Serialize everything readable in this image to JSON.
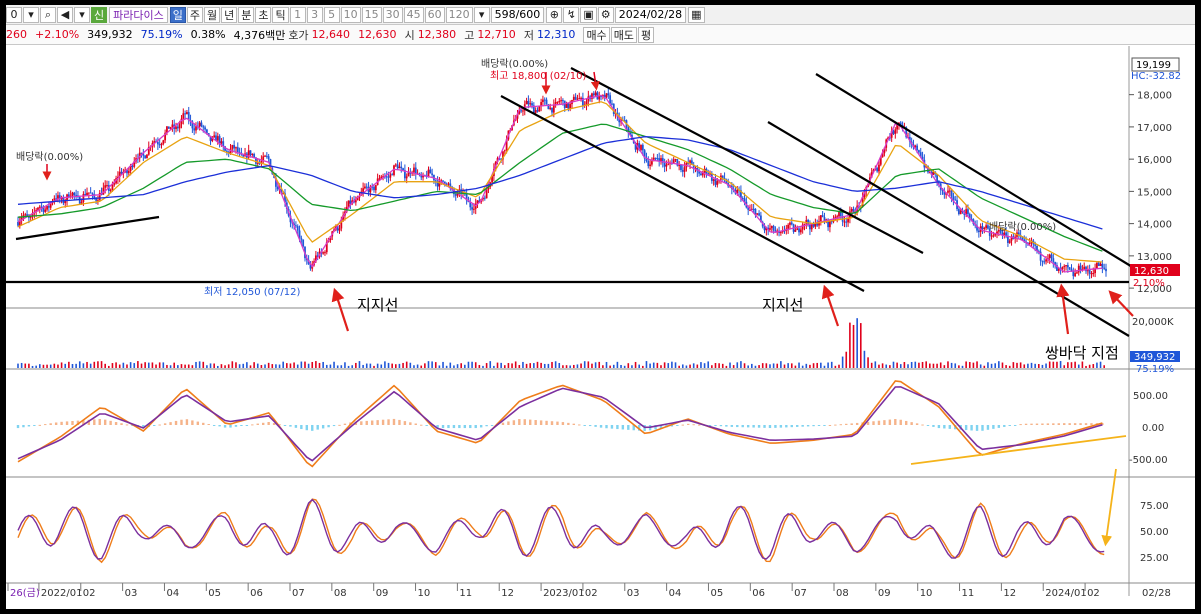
{
  "toolbar": {
    "code_fragment": "0",
    "badge": "신",
    "stock_name": "파라다이스",
    "periods": [
      "일",
      "주",
      "월",
      "년",
      "분",
      "초",
      "틱"
    ],
    "selected_period": "일",
    "minutes": [
      "1",
      "3",
      "5",
      "10",
      "15",
      "30",
      "45",
      "60",
      "120"
    ],
    "count": "598/600",
    "date": "2024/02/28"
  },
  "quote": {
    "change_partial": "260",
    "change_pct": "+2.10%",
    "volume": "349,932",
    "volume_ratio": "75.19%",
    "turnover": "0.38%",
    "trade_value": "4,376백만",
    "ask_label": "호가",
    "ask": "12,640",
    "bid": "12,630",
    "open_label": "시",
    "open": "12,380",
    "high_label": "고",
    "high": "12,710",
    "low_label": "저",
    "low": "12,310",
    "buy_label": "매수",
    "sell_label": "매도",
    "flat_label": "평"
  },
  "colors": {
    "up": "#e0001b",
    "down": "#1f56d8",
    "ma5": "#d63ac8",
    "ma20": "#e8a312",
    "ma60": "#159a2a",
    "ma120": "#1b2fd8",
    "trend": "#000000",
    "annotation_arrow": "#e0201b",
    "macd_line": "#ef7d1a",
    "macd_signal": "#7b2f9e",
    "macd_hist_pos": "#f5b38a",
    "macd_hist_neg": "#7fd3f0",
    "stoch_k": "#ef7d1a",
    "stoch_d": "#7b2f9e",
    "yellow_guide": "#f5b31a"
  },
  "annotations": {
    "dividend_1": "배당락(0.00%)",
    "dividend_2": "배당락(0.00%)",
    "dividend_3": "배당락(0.00%)",
    "high_label": "최고 18,800 (02/10)",
    "low_label": "최저 12,050 (07/12)",
    "support_1": "지지선",
    "support_2": "지지선",
    "double_bottom": "쌍바닥 지점"
  },
  "price_axis": {
    "ticks": [
      "18,000",
      "17,000",
      "16,000",
      "15,000",
      "14,000",
      "13,000",
      "12,000"
    ],
    "top_box": "19,199",
    "hc_label": "HC:-32.82",
    "current_price": "12,630",
    "current_change": "2.10%"
  },
  "volume_axis": {
    "top": "20,000K",
    "current": "349,932",
    "ratio": "75.19%"
  },
  "macd_axis": {
    "ticks": [
      "500.00",
      "0.00",
      "-500.00"
    ]
  },
  "stoch_axis": {
    "ticks": [
      "75.00",
      "50.00",
      "25.00"
    ]
  },
  "time_axis": {
    "labels": [
      "26(금)",
      "2022/01",
      "02",
      "03",
      "04",
      "05",
      "06",
      "07",
      "08",
      "09",
      "10",
      "11",
      "12",
      "2023/01",
      "02",
      "03",
      "04",
      "05",
      "06",
      "07",
      "08",
      "09",
      "10",
      "11",
      "12",
      "2024/01",
      "02"
    ],
    "end_label": "02/28"
  },
  "chart_data": {
    "type": "line",
    "price_range": [
      11600,
      19199
    ],
    "x": [
      "2021-12",
      "2022-01",
      "2022-02",
      "2022-03",
      "2022-04",
      "2022-05",
      "2022-06",
      "2022-07",
      "2022-08",
      "2022-09",
      "2022-10",
      "2022-11",
      "2022-12",
      "2023-01",
      "2023-02",
      "2023-03",
      "2023-04",
      "2023-05",
      "2023-06",
      "2023-07",
      "2023-08",
      "2023-09",
      "2023-10",
      "2023-11",
      "2023-12",
      "2024-01",
      "2024-02"
    ],
    "series": [
      {
        "values": [
          14050,
          14800,
          14900,
          16200,
          17300,
          16300,
          15900,
          12600,
          14700,
          15700,
          15400,
          14500,
          17600,
          17700,
          18000,
          16000,
          15800,
          15200,
          13700,
          14000,
          14300,
          17200,
          15200,
          13800,
          13500,
          12500,
          12630
        ]
      },
      {
        "values": [
          13900,
          14500,
          14700,
          15900,
          16700,
          16200,
          15800,
          13400,
          14300,
          15300,
          15300,
          14800,
          16900,
          17500,
          17800,
          16500,
          15900,
          15300,
          14200,
          14000,
          14200,
          16500,
          15500,
          14100,
          13600,
          12900,
          12800
        ]
      },
      {
        "values": [
          14200,
          14300,
          14500,
          15100,
          15900,
          16000,
          15700,
          14600,
          14400,
          14700,
          15000,
          14900,
          15900,
          16800,
          17100,
          16700,
          16300,
          15700,
          14900,
          14500,
          14300,
          15500,
          15700,
          14800,
          14200,
          13600,
          13100
        ]
      },
      {
        "values": [
          14600,
          14700,
          14800,
          14900,
          15300,
          15600,
          15800,
          15500,
          15000,
          14800,
          14900,
          15100,
          15500,
          16000,
          16500,
          16700,
          16600,
          16300,
          15800,
          15300,
          15000,
          15100,
          15300,
          15000,
          14600,
          14200,
          13800
        ]
      }
    ],
    "volume_spike_month": "2023-08",
    "macd": {
      "range": [
        -800,
        800
      ],
      "line": [
        -600,
        -200,
        300,
        -100,
        600,
        0,
        200,
        -700,
        50,
        650,
        -100,
        -300,
        400,
        650,
        400,
        -150,
        100,
        -150,
        -300,
        -250,
        -150,
        750,
        300,
        -500,
        -300,
        -150,
        50
      ],
      "signal": [
        -550,
        -250,
        200,
        -50,
        500,
        50,
        150,
        -600,
        0,
        550,
        -50,
        -250,
        300,
        600,
        450,
        -50,
        80,
        -120,
        -250,
        -230,
        -180,
        650,
        350,
        -400,
        -320,
        -180,
        20
      ]
    },
    "stochastic": {
      "range": [
        0,
        100
      ],
      "k": [
        40,
        80,
        30,
        75,
        25,
        80,
        20,
        85,
        30,
        70,
        20,
        85,
        40,
        75,
        25,
        80,
        20,
        80,
        30,
        75,
        20,
        90,
        15,
        70,
        25,
        80,
        15
      ],
      "d": [
        45,
        75,
        35,
        70,
        30,
        75,
        25,
        80,
        35,
        65,
        25,
        80,
        45,
        70,
        30,
        75,
        25,
        75,
        35,
        70,
        25,
        85,
        20,
        65,
        30,
        75,
        18
      ]
    }
  }
}
